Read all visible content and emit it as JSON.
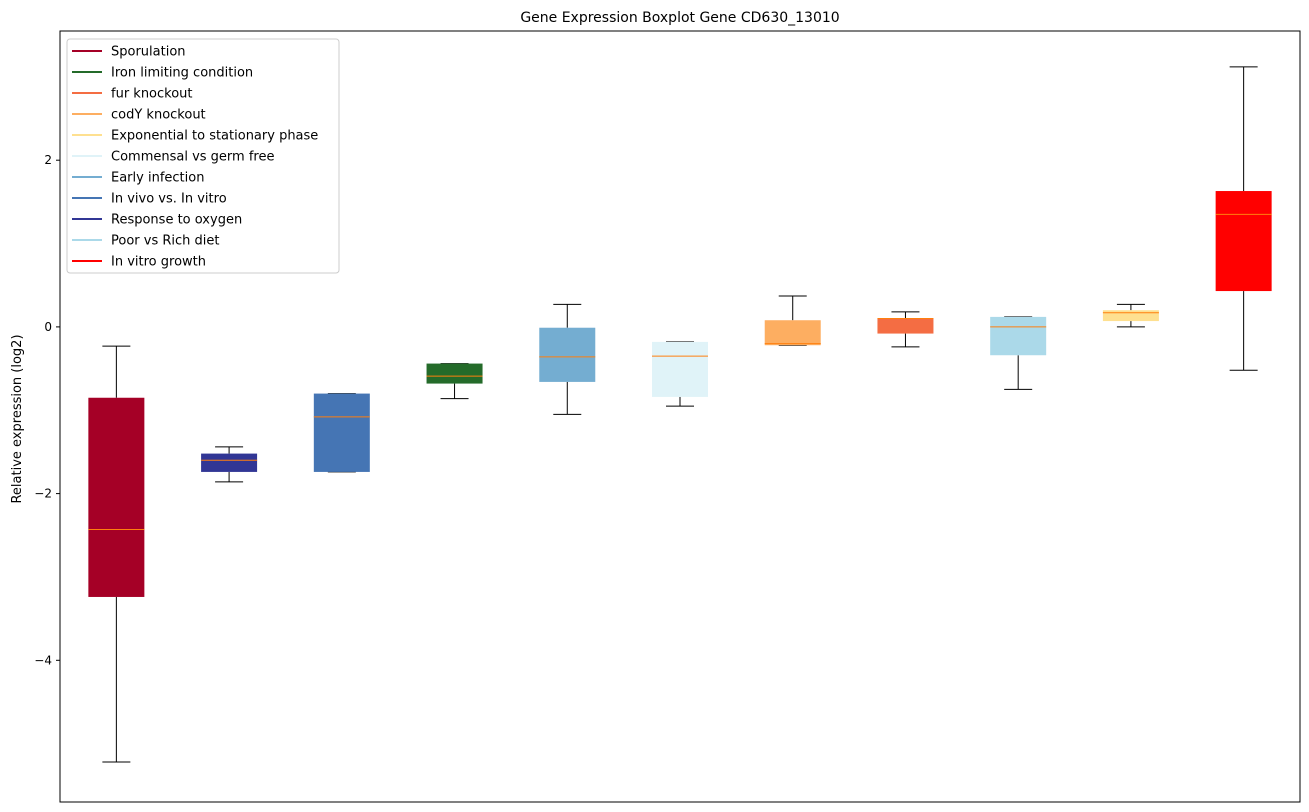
{
  "chart_data": {
    "type": "boxplot",
    "title": "Gene Expression Boxplot Gene CD630_13010",
    "xlabel": "",
    "ylabel": "Relative expression (log2)",
    "ylim": [
      -5.7,
      3.55
    ],
    "yticks": [
      -4,
      -2,
      0,
      2
    ],
    "ytick_labels": [
      "−4",
      "−2",
      "0",
      "2"
    ],
    "grid": false,
    "legend_position": "upper-left",
    "median_color": "#ff7f0e",
    "series": [
      {
        "name": "Sporulation",
        "color": "#a50026",
        "whisker_low": -5.22,
        "q1": -3.24,
        "median": -2.43,
        "q3": -0.85,
        "whisker_high": -0.23
      },
      {
        "name": "Response to oxygen",
        "color": "#313695",
        "whisker_low": -1.86,
        "q1": -1.74,
        "median": -1.6,
        "q3": -1.52,
        "whisker_high": -1.44
      },
      {
        "name": "In vivo vs. In vitro",
        "color": "#4575b4",
        "whisker_low": -1.74,
        "q1": -1.74,
        "median": -1.08,
        "q3": -0.8,
        "whisker_high": -0.8
      },
      {
        "name": "Iron limiting condition",
        "color": "#246b2a",
        "whisker_low": -0.86,
        "q1": -0.68,
        "median": -0.59,
        "q3": -0.44,
        "whisker_high": -0.44
      },
      {
        "name": "Early infection",
        "color": "#74add1",
        "whisker_low": -1.05,
        "q1": -0.66,
        "median": -0.36,
        "q3": -0.01,
        "whisker_high": 0.27
      },
      {
        "name": "Commensal vs germ free",
        "color": "#e0f3f8",
        "whisker_low": -0.95,
        "q1": -0.84,
        "median": -0.35,
        "q3": -0.18,
        "whisker_high": -0.18
      },
      {
        "name": "codY knockout",
        "color": "#fdae61",
        "whisker_low": -0.22,
        "q1": -0.22,
        "median": -0.2,
        "q3": 0.08,
        "whisker_high": 0.37
      },
      {
        "name": "fur knockout",
        "color": "#f46d43",
        "whisker_low": -0.24,
        "q1": -0.08,
        "median": 0.1,
        "q3": 0.1,
        "whisker_high": 0.18
      },
      {
        "name": "Poor vs Rich diet",
        "color": "#abd9e9",
        "whisker_low": -0.75,
        "q1": -0.34,
        "median": 0.0,
        "q3": 0.12,
        "whisker_high": 0.12
      },
      {
        "name": "Exponential to stationary phase",
        "color": "#fee090",
        "whisker_low": 0.0,
        "q1": 0.07,
        "median": 0.17,
        "q3": 0.2,
        "whisker_high": 0.27
      },
      {
        "name": "In vitro growth",
        "color": "#ff0000",
        "whisker_low": -0.52,
        "q1": 0.43,
        "median": 1.35,
        "q3": 1.63,
        "whisker_high": 3.12
      }
    ],
    "legend": [
      {
        "label": "Sporulation",
        "color": "#a50026"
      },
      {
        "label": "Iron limiting condition",
        "color": "#246b2a"
      },
      {
        "label": "fur knockout",
        "color": "#f46d43"
      },
      {
        "label": "codY knockout",
        "color": "#fdae61"
      },
      {
        "label": "Exponential to stationary phase",
        "color": "#fee090"
      },
      {
        "label": "Commensal vs germ free",
        "color": "#e0f3f8"
      },
      {
        "label": "Early infection",
        "color": "#74add1"
      },
      {
        "label": "In vivo vs. In vitro",
        "color": "#4575b4"
      },
      {
        "label": "Response to oxygen",
        "color": "#313695"
      },
      {
        "label": "Poor vs Rich diet",
        "color": "#abd9e9"
      },
      {
        "label": "In vitro growth",
        "color": "#ff0000"
      }
    ]
  }
}
